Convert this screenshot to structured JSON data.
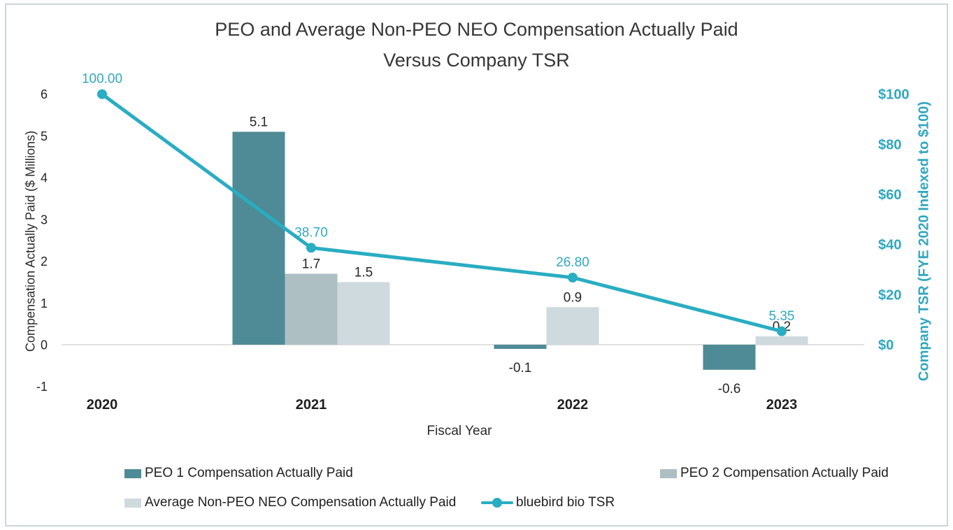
{
  "title": {
    "line1": "PEO and Average Non-PEO NEO Compensation Actually Paid",
    "line2": "Versus Company TSR"
  },
  "chart_data": {
    "type": "combo-bar-line",
    "title": "PEO and Average Non-PEO NEO Compensation Actually Paid Versus Company TSR",
    "categories": [
      "2020",
      "2021",
      "2022",
      "2023"
    ],
    "series": [
      {
        "name": "PEO 1 Compensation Actually Paid",
        "type": "bar",
        "color": "#4e8b96",
        "values": [
          null,
          5.1,
          -0.1,
          -0.6
        ],
        "labels": [
          "",
          "5.1",
          "-0.1",
          "-0.6"
        ]
      },
      {
        "name": "PEO 2 Compensation Actually Paid",
        "type": "bar",
        "color": "#aebfc4",
        "values": [
          null,
          1.7,
          null,
          null
        ],
        "labels": [
          "",
          "1.7",
          "",
          ""
        ]
      },
      {
        "name": "Average Non-PEO NEO Compensation Actually Paid",
        "type": "bar",
        "color": "#cfdadf",
        "values": [
          null,
          1.5,
          0.9,
          0.2
        ],
        "labels": [
          "",
          "1.5",
          "0.9",
          "0.2"
        ]
      },
      {
        "name": "bluebird bio TSR",
        "type": "line",
        "color": "#29adc2",
        "values": [
          100.0,
          38.7,
          26.8,
          5.35
        ],
        "labels": [
          "100.00",
          "38.70",
          "26.80",
          "5.35"
        ]
      }
    ],
    "xlabel": "Fiscal Year",
    "ylabel_left": "Compensation Actually Paid ($ Millions)",
    "ylabel_right": "Company TSR (FYE 2020 Indexed to $100)",
    "ylim_left": [
      -1,
      6
    ],
    "ylim_right": [
      0,
      100
    ],
    "left_ticks": [
      "6",
      "5",
      "4",
      "3",
      "2",
      "1",
      "0",
      "-1"
    ],
    "right_ticks": [
      "$100",
      "$80",
      "$60",
      "$40",
      "$20",
      "$0"
    ],
    "grid": "none (zero baseline only)",
    "legend_position": "bottom"
  },
  "colors": {
    "accent_teal": "#2fa8bf",
    "line_teal": "#29adc2",
    "axis_line": "#d7d7d7",
    "frame_border": "#ccd7d9",
    "text": "#262626"
  }
}
